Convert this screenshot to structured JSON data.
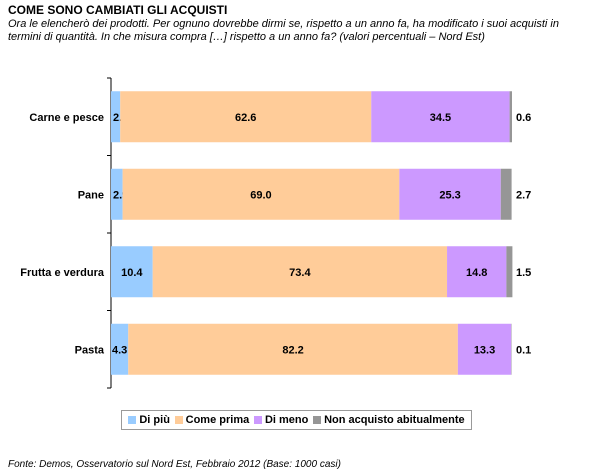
{
  "chart_data": {
    "type": "bar",
    "orientation": "horizontal",
    "stacked": true,
    "title": "COME SONO CAMBIATI GLI ACQUISTI",
    "subtitle": "Ora le elencherò dei prodotti. Per ognuno dovrebbe dirmi se, rispetto a un anno fa, ha modificato i suoi acquisti in termini di quantità. In che misura compra […] rispetto a un anno fa? (valori percentuali – Nord Est)",
    "categories": [
      "Carne e pesce",
      "Pane",
      "Frutta e verdura",
      "Pasta"
    ],
    "series": [
      {
        "name": "Di più",
        "color": "#99CCFF",
        "values": [
          2.3,
          2.9,
          10.4,
          4.3
        ]
      },
      {
        "name": "Come prima",
        "color": "#FFCC99",
        "values": [
          62.6,
          69.0,
          73.4,
          82.2
        ]
      },
      {
        "name": "Di meno",
        "color": "#CC99FF",
        "values": [
          34.5,
          25.3,
          14.8,
          13.3
        ]
      },
      {
        "name": "Non acquisto abitualmente",
        "color": "#969696",
        "values": [
          0.6,
          2.7,
          1.5,
          0.1
        ]
      }
    ],
    "xlim": [
      0,
      100
    ],
    "grid": false,
    "legend": "bottom",
    "source": "Fonte: Demos, Osservatorio sul Nord Est, Febbraio 2012 (Base: 1000 casi)"
  }
}
